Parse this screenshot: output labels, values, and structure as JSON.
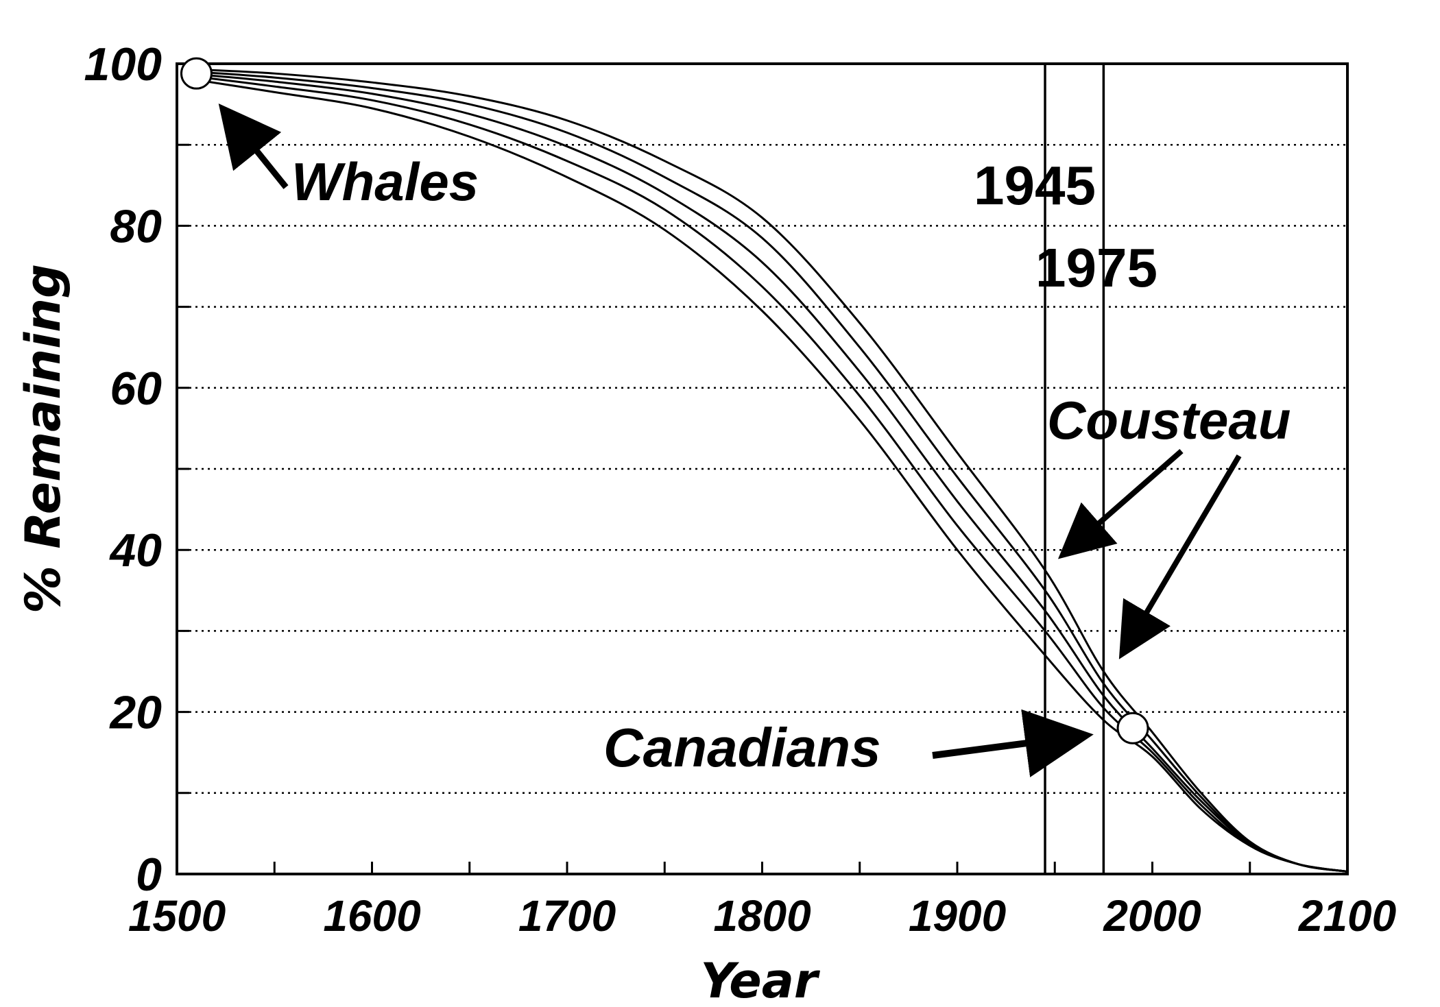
{
  "chart_data": {
    "type": "line",
    "title": "",
    "xlabel": "Year",
    "ylabel": "% Remaining",
    "xlim": [
      1500,
      2100
    ],
    "ylim": [
      0,
      100
    ],
    "xticks": [
      1500,
      1600,
      1700,
      1800,
      1900,
      2000,
      2100
    ],
    "yticks": [
      0,
      20,
      40,
      60,
      80,
      100
    ],
    "grid": "horizontal dotted every 10",
    "series": [
      {
        "x": [
          1510,
          1550,
          1600,
          1650,
          1700,
          1750,
          1800,
          1850,
          1900,
          1945,
          1975,
          2000,
          2025,
          2050,
          2075,
          2100
        ],
        "values": [
          98,
          96.5,
          94.5,
          91,
          86,
          79.5,
          69.5,
          56,
          40,
          27,
          19,
          14.5,
          8,
          3.5,
          1.2,
          0.3
        ]
      },
      {
        "x": [
          1510,
          1550,
          1600,
          1650,
          1700,
          1750,
          1800,
          1850,
          1900,
          1945,
          1975,
          2000,
          2025,
          2050,
          2075,
          2100
        ],
        "values": [
          98.4,
          97.2,
          95.5,
          92.5,
          88,
          82,
          72.5,
          59,
          43,
          30,
          20.5,
          15,
          8.5,
          3.5,
          1.2,
          0.3
        ]
      },
      {
        "x": [
          1510,
          1550,
          1600,
          1650,
          1700,
          1750,
          1800,
          1850,
          1900,
          1945,
          1975,
          2000,
          2025,
          2050,
          2075,
          2100
        ],
        "values": [
          98.7,
          97.8,
          96.3,
          93.8,
          89.8,
          84,
          75.5,
          62,
          46,
          32.5,
          22,
          15.5,
          9,
          3.7,
          1.2,
          0.3
        ]
      },
      {
        "x": [
          1510,
          1550,
          1600,
          1650,
          1700,
          1750,
          1800,
          1850,
          1900,
          1945,
          1975,
          2000,
          2025,
          2050,
          2075,
          2100
        ],
        "values": [
          99,
          98.3,
          97,
          95,
          91.5,
          86,
          78.5,
          65,
          49,
          35,
          23.5,
          16.5,
          9.5,
          3.8,
          1.2,
          0.3
        ]
      },
      {
        "x": [
          1510,
          1550,
          1600,
          1650,
          1700,
          1750,
          1800,
          1850,
          1900,
          1945,
          1975,
          2000,
          2025,
          2050,
          2075,
          2100
        ],
        "values": [
          99.3,
          98.8,
          97.7,
          96,
          93,
          88,
          81,
          68,
          52,
          37.5,
          25,
          17.5,
          10,
          4,
          1.2,
          0.3
        ]
      }
    ],
    "markers": [
      {
        "x": 1510,
        "y": 98.8,
        "label": "Whales"
      },
      {
        "x": 1990,
        "y": 18,
        "label": "Canadians"
      }
    ],
    "vlines": [
      {
        "x": 1945,
        "label": "1945"
      },
      {
        "x": 1975,
        "label": "1975"
      }
    ],
    "annotations": [
      {
        "text": "Whales"
      },
      {
        "text": "1945"
      },
      {
        "text": "1975"
      },
      {
        "text": "Cousteau"
      },
      {
        "text": "Canadians"
      }
    ]
  }
}
